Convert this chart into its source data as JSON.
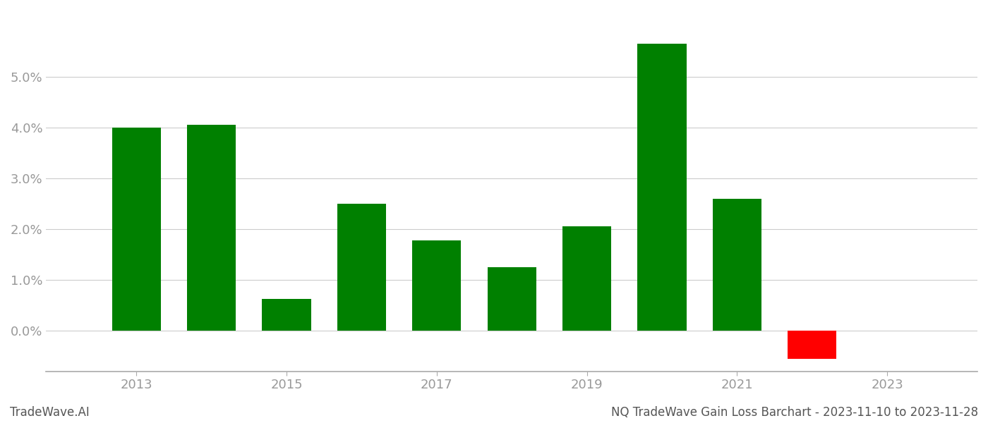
{
  "years": [
    2013,
    2014,
    2015,
    2016,
    2017,
    2018,
    2019,
    2020,
    2021,
    2022
  ],
  "values": [
    0.0399,
    0.0405,
    0.0062,
    0.025,
    0.0178,
    0.0125,
    0.0205,
    0.0565,
    0.026,
    -0.0055
  ],
  "colors": [
    "#008000",
    "#008000",
    "#008000",
    "#008000",
    "#008000",
    "#008000",
    "#008000",
    "#008000",
    "#008000",
    "#ff0000"
  ],
  "footer_left": "TradeWave.AI",
  "footer_right": "NQ TradeWave Gain Loss Barchart - 2023-11-10 to 2023-11-28",
  "ylim_min": -0.008,
  "ylim_max": 0.063,
  "background_color": "#ffffff",
  "grid_color": "#cccccc",
  "tick_color": "#999999",
  "bar_width": 0.65,
  "xtick_labels": [
    "2013",
    "2015",
    "2017",
    "2019",
    "2021",
    "2023"
  ],
  "xtick_positions": [
    2013,
    2015,
    2017,
    2019,
    2021,
    2023
  ],
  "yticks": [
    0.0,
    0.01,
    0.02,
    0.03,
    0.04,
    0.05
  ],
  "xlim_min": 2011.8,
  "xlim_max": 2024.2
}
